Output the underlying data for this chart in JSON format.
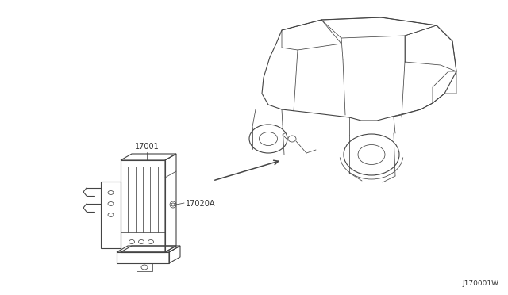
{
  "bg_color": "#ffffff",
  "label_17001": "17001",
  "label_17020a": "17020A",
  "label_diagram": "J170001W",
  "text_color": "#333333",
  "line_color": "#444444",
  "font_size_labels": 6.5,
  "font_size_diagram": 6.5
}
